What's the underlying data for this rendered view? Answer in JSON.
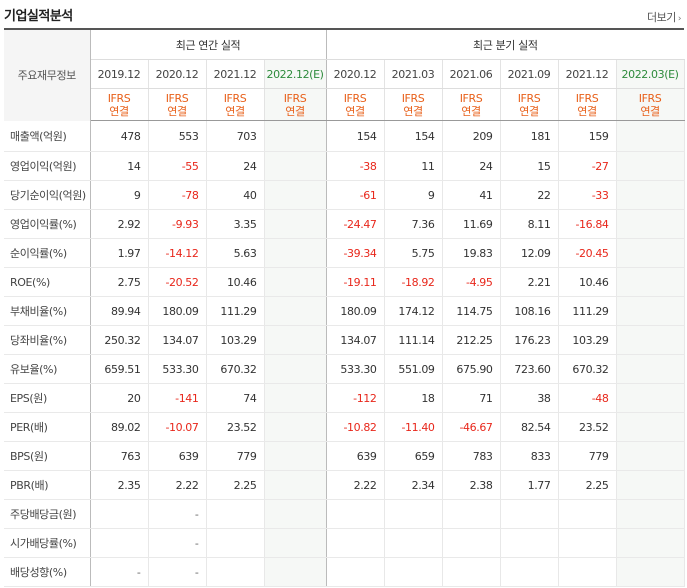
{
  "title": "기업실적분석",
  "more_label": "더보기",
  "header": {
    "row_header": "주요재무정보",
    "annual_group": "최근 연간 실적",
    "quarter_group": "최근 분기 실적",
    "annual_periods": [
      "2019.12",
      "2020.12",
      "2021.12",
      "2022.12(E)"
    ],
    "quarter_periods": [
      "2020.12",
      "2021.03",
      "2021.06",
      "2021.09",
      "2021.12",
      "2022.03(E)"
    ],
    "ifrs_line1": "IFRS",
    "ifrs_line2": "연결"
  },
  "rows": [
    {
      "label": "매출액(억원)",
      "annual": [
        "478",
        "553",
        "703",
        ""
      ],
      "quarter": [
        "154",
        "154",
        "209",
        "181",
        "159",
        ""
      ]
    },
    {
      "label": "영업이익(억원)",
      "annual": [
        "14",
        "-55",
        "24",
        ""
      ],
      "quarter": [
        "-38",
        "11",
        "24",
        "15",
        "-27",
        ""
      ]
    },
    {
      "label": "당기순이익(억원)",
      "annual": [
        "9",
        "-78",
        "40",
        ""
      ],
      "quarter": [
        "-61",
        "9",
        "41",
        "22",
        "-33",
        ""
      ]
    },
    {
      "label": "영업이익률(%)",
      "annual": [
        "2.92",
        "-9.93",
        "3.35",
        ""
      ],
      "quarter": [
        "-24.47",
        "7.36",
        "11.69",
        "8.11",
        "-16.84",
        ""
      ]
    },
    {
      "label": "순이익률(%)",
      "annual": [
        "1.97",
        "-14.12",
        "5.63",
        ""
      ],
      "quarter": [
        "-39.34",
        "5.75",
        "19.83",
        "12.09",
        "-20.45",
        ""
      ]
    },
    {
      "label": "ROE(%)",
      "annual": [
        "2.75",
        "-20.52",
        "10.46",
        ""
      ],
      "quarter": [
        "-19.11",
        "-18.92",
        "-4.95",
        "2.21",
        "10.46",
        ""
      ]
    },
    {
      "label": "부채비율(%)",
      "annual": [
        "89.94",
        "180.09",
        "111.29",
        ""
      ],
      "quarter": [
        "180.09",
        "174.12",
        "114.75",
        "108.16",
        "111.29",
        ""
      ]
    },
    {
      "label": "당좌비율(%)",
      "annual": [
        "250.32",
        "134.07",
        "103.29",
        ""
      ],
      "quarter": [
        "134.07",
        "111.14",
        "212.25",
        "176.23",
        "103.29",
        ""
      ]
    },
    {
      "label": "유보율(%)",
      "annual": [
        "659.51",
        "533.30",
        "670.32",
        ""
      ],
      "quarter": [
        "533.30",
        "551.09",
        "675.90",
        "723.60",
        "670.32",
        ""
      ]
    },
    {
      "label": "EPS(원)",
      "annual": [
        "20",
        "-141",
        "74",
        ""
      ],
      "quarter": [
        "-112",
        "18",
        "71",
        "38",
        "-48",
        ""
      ]
    },
    {
      "label": "PER(배)",
      "annual": [
        "89.02",
        "-10.07",
        "23.52",
        ""
      ],
      "quarter": [
        "-10.82",
        "-11.40",
        "-46.67",
        "82.54",
        "23.52",
        ""
      ]
    },
    {
      "label": "BPS(원)",
      "annual": [
        "763",
        "639",
        "779",
        ""
      ],
      "quarter": [
        "639",
        "659",
        "783",
        "833",
        "779",
        ""
      ]
    },
    {
      "label": "PBR(배)",
      "annual": [
        "2.35",
        "2.22",
        "2.25",
        ""
      ],
      "quarter": [
        "2.22",
        "2.34",
        "2.38",
        "1.77",
        "2.25",
        ""
      ]
    },
    {
      "label": "주당배당금(원)",
      "annual": [
        "",
        "-",
        "",
        ""
      ],
      "quarter": [
        "",
        "",
        "",
        "",
        "",
        ""
      ]
    },
    {
      "label": "시가배당률(%)",
      "annual": [
        "",
        "-",
        "",
        ""
      ],
      "quarter": [
        "",
        "",
        "",
        "",
        "",
        ""
      ]
    },
    {
      "label": "배당성향(%)",
      "annual": [
        "-",
        "-",
        "",
        ""
      ],
      "quarter": [
        "",
        "",
        "",
        "",
        "",
        ""
      ]
    }
  ],
  "colors": {
    "negative": "#e8271b",
    "ifrs": "#e8601a",
    "estimate_header": "#2e8b3c"
  }
}
